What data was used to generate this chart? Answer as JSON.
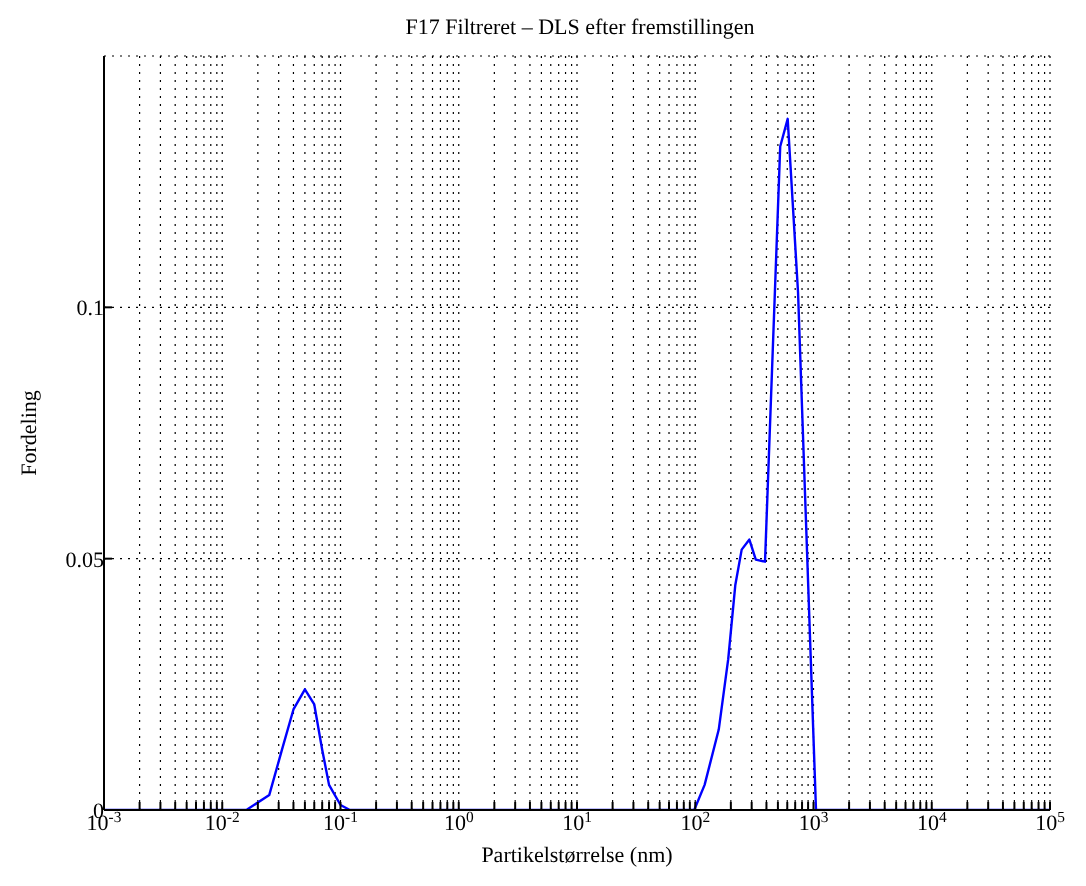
{
  "chart_data": {
    "type": "line",
    "title": "F17 Filtreret – DLS efter fremstillingen",
    "xlabel": "Partikelstørrelse (nm)",
    "ylabel": "Fordeling",
    "log": "x",
    "grid": true,
    "marker": "none",
    "line_style": "solid",
    "xlim": [
      0.001,
      100000
    ],
    "ylim": [
      0,
      0.15
    ],
    "yticks": [
      0,
      0.05,
      0.1
    ],
    "xticks": [
      {
        "value": 0.001,
        "label": "10$^{-3}$"
      },
      {
        "value": 0.002,
        "label": null
      },
      {
        "value": 0.003,
        "label": null
      },
      {
        "value": 0.004,
        "label": null
      },
      {
        "value": 0.005,
        "label": null
      },
      {
        "value": 0.006,
        "label": null
      },
      {
        "value": 0.007,
        "label": null
      },
      {
        "value": 0.008,
        "label": null
      },
      {
        "value": 0.009,
        "label": null
      },
      {
        "value": 0.01,
        "label": "10$^{-2}$"
      },
      {
        "value": 0.02,
        "label": null
      },
      {
        "value": 0.03,
        "label": null
      },
      {
        "value": 0.04,
        "label": null
      },
      {
        "value": 0.05,
        "label": null
      },
      {
        "value": 0.06,
        "label": null
      },
      {
        "value": 0.07,
        "label": null
      },
      {
        "value": 0.08,
        "label": null
      },
      {
        "value": 0.09,
        "label": null
      },
      {
        "value": 0.1,
        "label": "10$^{-1}$"
      },
      {
        "value": 0.2,
        "label": null
      },
      {
        "value": 0.3,
        "label": null
      },
      {
        "value": 0.4,
        "label": null
      },
      {
        "value": 0.5,
        "label": null
      },
      {
        "value": 0.6,
        "label": null
      },
      {
        "value": 0.7,
        "label": null
      },
      {
        "value": 0.8,
        "label": null
      },
      {
        "value": 0.9,
        "label": null
      },
      {
        "value": 1,
        "label": "10$^{0}$"
      },
      {
        "value": 2,
        "label": null
      },
      {
        "value": 3,
        "label": null
      },
      {
        "value": 4,
        "label": null
      },
      {
        "value": 5,
        "label": null
      },
      {
        "value": 6,
        "label": null
      },
      {
        "value": 7,
        "label": null
      },
      {
        "value": 8,
        "label": null
      },
      {
        "value": 9,
        "label": null
      },
      {
        "value": 10,
        "label": "10$^{1}$"
      },
      {
        "value": 20,
        "label": null
      },
      {
        "value": 30,
        "label": null
      },
      {
        "value": 40,
        "label": null
      },
      {
        "value": 50,
        "label": null
      },
      {
        "value": 60,
        "label": null
      },
      {
        "value": 70,
        "label": null
      },
      {
        "value": 80,
        "label": null
      },
      {
        "value": 90,
        "label": null
      },
      {
        "value": 100,
        "label": "10$^{2}$"
      },
      {
        "value": 200,
        "label": null
      },
      {
        "value": 300,
        "label": null
      },
      {
        "value": 400,
        "label": null
      },
      {
        "value": 500,
        "label": null
      },
      {
        "value": 600,
        "label": null
      },
      {
        "value": 700,
        "label": null
      },
      {
        "value": 800,
        "label": null
      },
      {
        "value": 900,
        "label": null
      },
      {
        "value": 1000,
        "label": "10$^{3}$"
      },
      {
        "value": 2000,
        "label": null
      },
      {
        "value": 3000,
        "label": null
      },
      {
        "value": 4000,
        "label": null
      },
      {
        "value": 5000,
        "label": null
      },
      {
        "value": 6000,
        "label": null
      },
      {
        "value": 7000,
        "label": null
      },
      {
        "value": 8000,
        "label": null
      },
      {
        "value": 9000,
        "label": null
      },
      {
        "value": 10000,
        "label": "10$^{4}$"
      },
      {
        "value": 20000,
        "label": null
      },
      {
        "value": 30000,
        "label": null
      },
      {
        "value": 40000,
        "label": null
      },
      {
        "value": 50000,
        "label": null
      },
      {
        "value": 60000,
        "label": null
      },
      {
        "value": 70000,
        "label": null
      },
      {
        "value": 80000,
        "label": null
      },
      {
        "value": 90000,
        "label": null
      },
      {
        "value": 100000,
        "label": "10$^{5}$"
      }
    ],
    "x": [
      0.001,
      0.016,
      0.025,
      0.032,
      0.04,
      0.05,
      0.06,
      0.07,
      0.08,
      0.1,
      0.12,
      98,
      120,
      158,
      190,
      218,
      247,
      287,
      325,
      389,
      523,
      605,
      740,
      1050,
      100000
    ],
    "series": [
      {
        "color": "#0000ff",
        "values": [
          0,
          0,
          0.003,
          0.012,
          0.02,
          0.024,
          0.021,
          0.012,
          0.005,
          0.001,
          0,
          0,
          0.005,
          0.016,
          0.03,
          0.0447,
          0.0518,
          0.0538,
          0.0498,
          0.0494,
          0.132,
          0.1375,
          0.103,
          0,
          0
        ]
      }
    ]
  }
}
